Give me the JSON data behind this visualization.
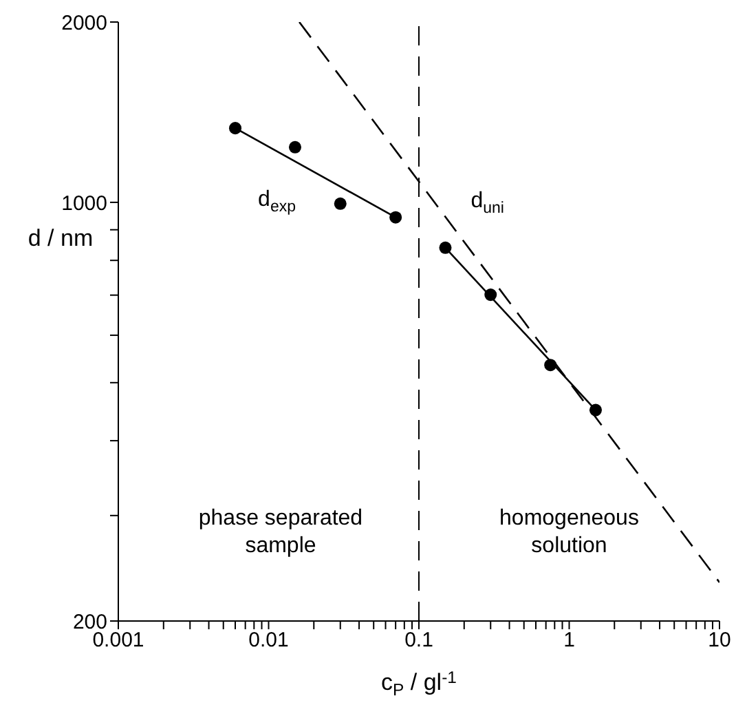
{
  "chart_data": {
    "type": "scatter",
    "log": "xy",
    "xlabel": "c$_{P}$ / gl$^{-1}$",
    "ylabel": "d / nm",
    "xlim": [
      0.001,
      10
    ],
    "ylim": [
      200,
      2000
    ],
    "xticks": [
      0.001,
      {
        "value": 0.002,
        "label": null
      },
      {
        "value": 0.003,
        "label": null
      },
      {
        "value": 0.004,
        "label": null
      },
      {
        "value": 0.005,
        "label": null
      },
      {
        "value": 0.006,
        "label": null
      },
      {
        "value": 0.007,
        "label": null
      },
      {
        "value": 0.008,
        "label": null
      },
      {
        "value": 0.009,
        "label": null
      },
      0.01,
      {
        "value": 0.02,
        "label": null
      },
      {
        "value": 0.03,
        "label": null
      },
      {
        "value": 0.04,
        "label": null
      },
      {
        "value": 0.05,
        "label": null
      },
      {
        "value": 0.06,
        "label": null
      },
      {
        "value": 0.07,
        "label": null
      },
      {
        "value": 0.08,
        "label": null
      },
      {
        "value": 0.09,
        "label": null
      },
      0.1,
      {
        "value": 0.2,
        "label": null
      },
      {
        "value": 0.3,
        "label": null
      },
      {
        "value": 0.4,
        "label": null
      },
      {
        "value": 0.5,
        "label": null
      },
      {
        "value": 0.6,
        "label": null
      },
      {
        "value": 0.7,
        "label": null
      },
      {
        "value": 0.8,
        "label": null
      },
      {
        "value": 0.9,
        "label": null
      },
      1,
      {
        "value": 2,
        "label": null
      },
      {
        "value": 3,
        "label": null
      },
      {
        "value": 4,
        "label": null
      },
      {
        "value": 5,
        "label": null
      },
      {
        "value": 6,
        "label": null
      },
      {
        "value": 7,
        "label": null
      },
      {
        "value": 8,
        "label": null
      },
      {
        "value": 9,
        "label": null
      },
      10
    ],
    "yticks": [
      200,
      {
        "value": 300,
        "label": null
      },
      {
        "value": 400,
        "label": null
      },
      {
        "value": 500,
        "label": null
      },
      {
        "value": 600,
        "label": null
      },
      {
        "value": 700,
        "label": null
      },
      {
        "value": 800,
        "label": null
      },
      {
        "value": 900,
        "label": null
      },
      1000,
      2000
    ],
    "grid": false,
    "legend": false,
    "series": [
      {
        "color": "#000000",
        "marker": "circle",
        "x": [
          0.006,
          0.015,
          0.03,
          0.07,
          0.15,
          0.3,
          0.75,
          1.5
        ],
        "values": [
          1330,
          1236,
          995,
          944,
          840,
          701,
          535,
          450
        ]
      },
      {
        "type": "line",
        "name": "d$_{exp}$",
        "marker": "none",
        "color": "#000000",
        "line_style": "solid",
        "x": [
          0.006,
          0.07
        ],
        "values": [
          1330,
          944
        ]
      },
      {
        "type": "line",
        "marker": "none",
        "color": "#000000",
        "line_style": "solid",
        "x": [
          0.15,
          1.5
        ],
        "values": [
          840,
          450
        ]
      },
      {
        "type": "line",
        "name": "d$_{uni}$",
        "marker": "none",
        "color": "#000000",
        "line_style": "dashed",
        "x": [
          0.016,
          10
        ],
        "values": [
          2000,
          232
        ]
      }
    ],
    "ref_lines": [
      {
        "axis": "x",
        "value": 0.1,
        "line_style": "dashed",
        "color": "#000000"
      }
    ],
    "annotations": [
      "phase separated sample",
      "homogeneous solution"
    ]
  }
}
